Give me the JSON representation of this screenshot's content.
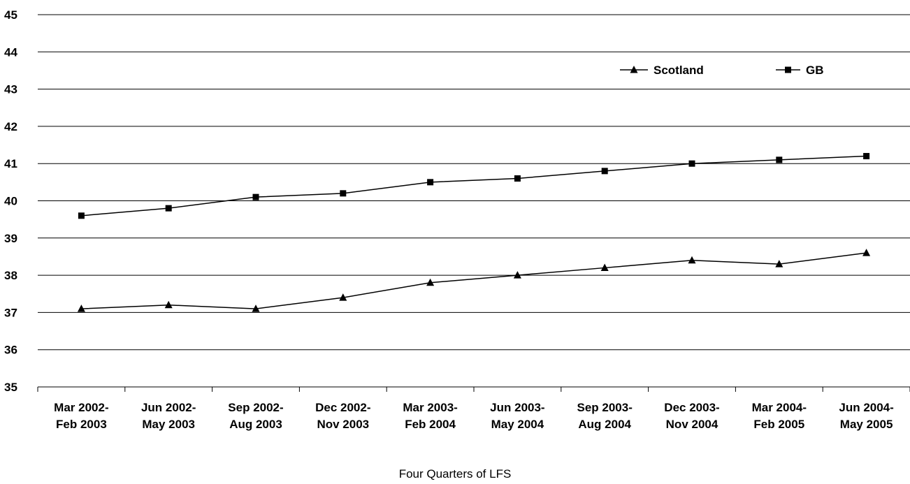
{
  "chart_data": {
    "type": "line",
    "title": "",
    "xlabel": "Four Quarters of LFS",
    "ylabel": "",
    "ylim": [
      35,
      45
    ],
    "yticks": [
      "35",
      "36",
      "37",
      "38",
      "39",
      "40",
      "41",
      "42",
      "43",
      "44",
      "45"
    ],
    "grid": true,
    "legend_position": "top-right",
    "categories": [
      [
        "Mar 2002-",
        "Feb 2003"
      ],
      [
        "Jun 2002-",
        "May 2003"
      ],
      [
        "Sep 2002-",
        "Aug 2003"
      ],
      [
        "Dec 2002-",
        "Nov 2003"
      ],
      [
        "Mar 2003-",
        "Feb 2004"
      ],
      [
        "Jun 2003-",
        "May 2004"
      ],
      [
        "Sep 2003-",
        "Aug 2004"
      ],
      [
        "Dec 2003-",
        "Nov 2004"
      ],
      [
        "Mar 2004-",
        "Feb 2005"
      ],
      [
        "Jun 2004-",
        "May 2005"
      ]
    ],
    "series": [
      {
        "name": "Scotland",
        "marker": "triangle",
        "color": "#000000",
        "values": [
          37.1,
          37.2,
          37.1,
          37.4,
          37.8,
          38.0,
          38.2,
          38.4,
          38.3,
          38.6
        ]
      },
      {
        "name": "GB",
        "marker": "square",
        "color": "#000000",
        "values": [
          39.6,
          39.8,
          40.1,
          40.2,
          40.5,
          40.6,
          40.8,
          41.0,
          41.1,
          41.2
        ]
      }
    ]
  }
}
